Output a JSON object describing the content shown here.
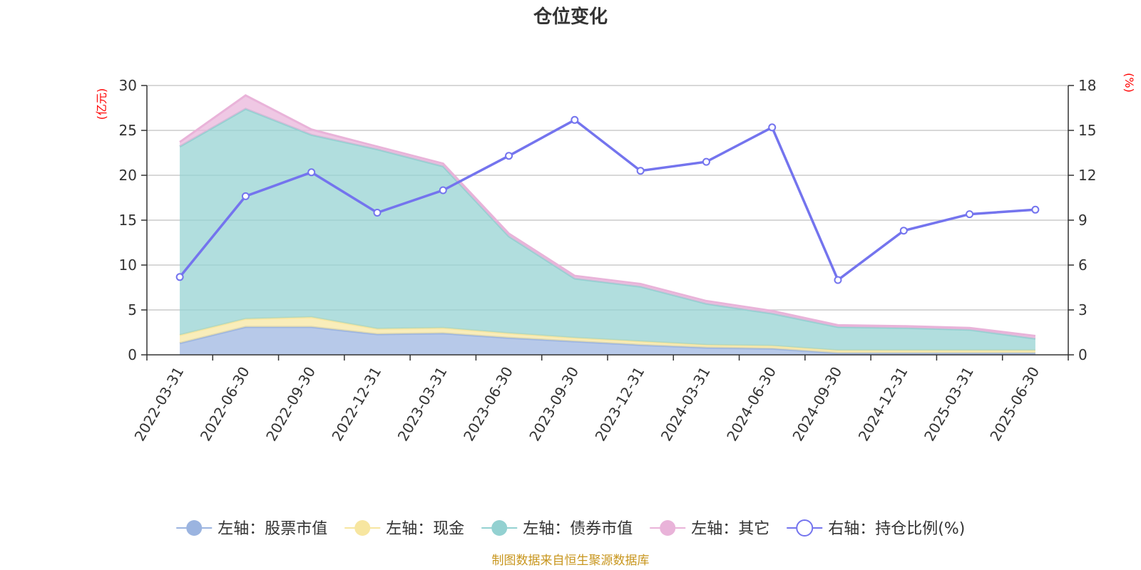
{
  "chart_data": {
    "type": "area",
    "title": "仓位变化",
    "left_axis_unit": "(亿元)",
    "right_axis_unit": "(%)",
    "categories": [
      "2022-03-31",
      "2022-06-30",
      "2022-09-30",
      "2022-12-31",
      "2023-03-31",
      "2023-06-30",
      "2023-09-30",
      "2023-12-31",
      "2024-03-31",
      "2024-06-30",
      "2024-09-30",
      "2024-12-31",
      "2025-03-31",
      "2025-06-30"
    ],
    "left_ylim": [
      0,
      30
    ],
    "left_yticks": [
      0,
      5,
      10,
      15,
      20,
      25,
      30
    ],
    "right_ylim": [
      0,
      18
    ],
    "right_yticks": [
      0,
      3,
      6,
      9,
      12,
      15,
      18
    ],
    "grid": true,
    "stacked_series": [
      {
        "name": "左轴：股票市值",
        "color": "#9bb4e0",
        "values": [
          1.3,
          3.1,
          3.1,
          2.3,
          2.4,
          1.9,
          1.5,
          1.1,
          0.8,
          0.7,
          0.2,
          0.2,
          0.2,
          0.2
        ]
      },
      {
        "name": "左轴：现金",
        "color": "#f7e6a0",
        "values": [
          0.9,
          0.9,
          1.1,
          0.6,
          0.6,
          0.5,
          0.4,
          0.4,
          0.3,
          0.3,
          0.3,
          0.3,
          0.3,
          0.3
        ]
      },
      {
        "name": "左轴：债券市值",
        "color": "#93d1d1",
        "values": [
          21.0,
          23.4,
          20.3,
          20.0,
          18.0,
          10.8,
          6.6,
          6.1,
          4.6,
          3.6,
          2.6,
          2.5,
          2.3,
          1.3
        ]
      },
      {
        "name": "左轴：其它",
        "color": "#e9b3d9",
        "values": [
          0.5,
          1.5,
          0.6,
          0.3,
          0.3,
          0.3,
          0.3,
          0.3,
          0.3,
          0.3,
          0.2,
          0.2,
          0.2,
          0.3
        ]
      }
    ],
    "line_series": {
      "name": "右轴：持仓比例(%)",
      "color": "#7474ee",
      "values": [
        5.2,
        10.6,
        12.2,
        9.5,
        11.0,
        13.3,
        15.7,
        12.3,
        12.9,
        15.2,
        5.0,
        8.3,
        9.4,
        9.7
      ]
    },
    "legend_position": "bottom-center"
  },
  "source_note": "制图数据来自恒生聚源数据库"
}
